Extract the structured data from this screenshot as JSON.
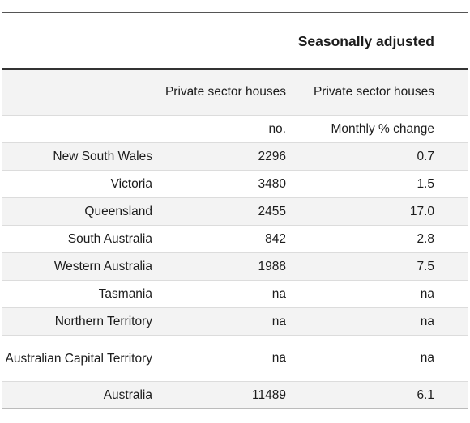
{
  "table": {
    "header_top": "Seasonally adjusted",
    "header_row": {
      "col2": "Private sector houses",
      "col3": "Private sector houses"
    },
    "units_row": {
      "col2": "no.",
      "col3": "Monthly % change"
    },
    "rows": [
      {
        "region": "New South Wales",
        "number": "2296",
        "change": "0.7"
      },
      {
        "region": "Victoria",
        "number": "3480",
        "change": "1.5"
      },
      {
        "region": "Queensland",
        "number": "2455",
        "change": "17.0"
      },
      {
        "region": "South Australia",
        "number": "842",
        "change": "2.8"
      },
      {
        "region": "Western Australia",
        "number": "1988",
        "change": "7.5"
      },
      {
        "region": "Tasmania",
        "number": "na",
        "change": "na"
      },
      {
        "region": "Northern Territory",
        "number": "na",
        "change": "na"
      },
      {
        "region": "Australian Capital Territory",
        "number": "na",
        "change": "na"
      },
      {
        "region": "Australia",
        "number": "11489",
        "change": "6.1"
      }
    ]
  }
}
